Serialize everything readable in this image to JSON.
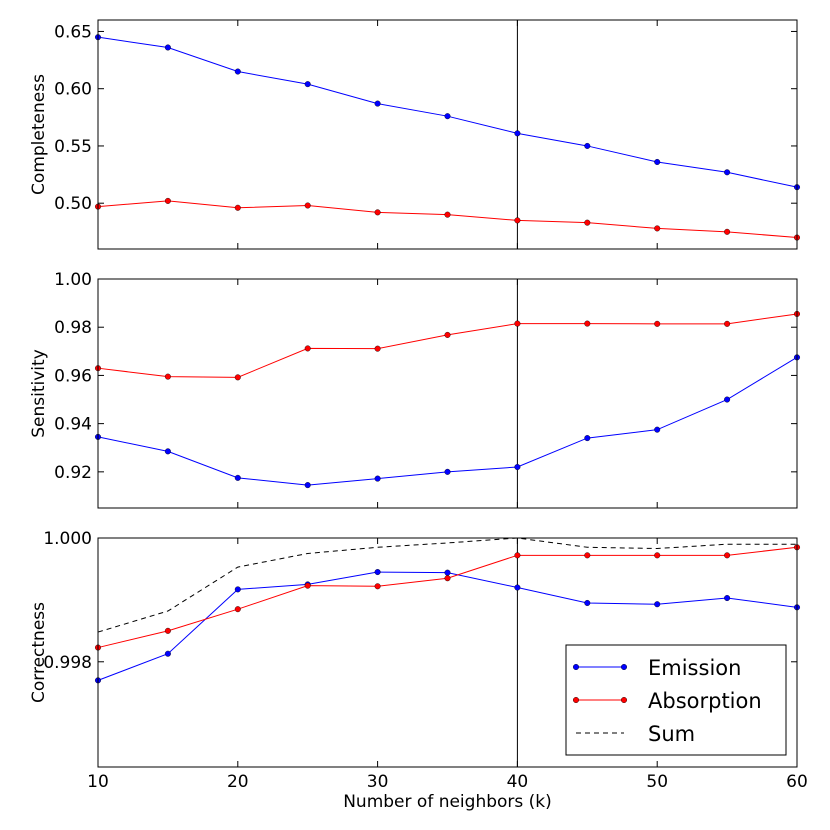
{
  "chart_data": [
    {
      "type": "line",
      "panel": "top",
      "ylabel": "Completeness",
      "xlabel": "",
      "x": [
        10,
        15,
        20,
        25,
        30,
        35,
        40,
        45,
        50,
        55,
        60
      ],
      "xlim": [
        10,
        60
      ],
      "ylim": [
        0.46,
        0.66
      ],
      "yticks": [
        0.5,
        0.55,
        0.6,
        0.65
      ],
      "ytick_labels": [
        "0.50",
        "0.55",
        "0.60",
        "0.65"
      ],
      "xticks_visible": false,
      "vline_x": 40,
      "series": [
        {
          "name": "Emission",
          "color": "#0000ff",
          "marker": true,
          "dashed": false,
          "values": [
            0.645,
            0.636,
            0.615,
            0.604,
            0.587,
            0.576,
            0.561,
            0.55,
            0.536,
            0.527,
            0.514
          ]
        },
        {
          "name": "Absorption",
          "color": "#ff0000",
          "marker": true,
          "dashed": false,
          "values": [
            0.497,
            0.502,
            0.496,
            0.498,
            0.492,
            0.49,
            0.485,
            0.483,
            0.478,
            0.475,
            0.47
          ]
        }
      ]
    },
    {
      "type": "line",
      "panel": "middle",
      "ylabel": "Sensitivity",
      "xlabel": "",
      "x": [
        10,
        15,
        20,
        25,
        30,
        35,
        40,
        45,
        50,
        55,
        60
      ],
      "xlim": [
        10,
        60
      ],
      "ylim": [
        0.905,
        1.0
      ],
      "yticks": [
        0.92,
        0.94,
        0.96,
        0.98,
        1.0
      ],
      "ytick_labels": [
        "0.92",
        "0.94",
        "0.96",
        "0.98",
        "1.00"
      ],
      "xticks_visible": false,
      "vline_x": 40,
      "series": [
        {
          "name": "Emission",
          "color": "#0000ff",
          "marker": true,
          "dashed": false,
          "values": [
            0.9345,
            0.9285,
            0.9175,
            0.9145,
            0.9172,
            0.92,
            0.922,
            0.934,
            0.9375,
            0.95,
            0.9675
          ]
        },
        {
          "name": "Absorption",
          "color": "#ff0000",
          "marker": true,
          "dashed": false,
          "values": [
            0.963,
            0.9595,
            0.9592,
            0.9712,
            0.9711,
            0.9768,
            0.9815,
            0.9815,
            0.9814,
            0.9814,
            0.9855
          ]
        }
      ]
    },
    {
      "type": "line",
      "panel": "bottom",
      "ylabel": "Correctness",
      "xlabel": "Number of neighbors (k)",
      "x": [
        10,
        15,
        20,
        25,
        30,
        35,
        40,
        45,
        50,
        55,
        60
      ],
      "xlim": [
        10,
        60
      ],
      "ylim": [
        0.9963,
        1.0
      ],
      "yticks": [
        0.998,
        1.0
      ],
      "ytick_labels": [
        "0.998",
        "1.000"
      ],
      "xticks": [
        10,
        20,
        30,
        40,
        50,
        60
      ],
      "xtick_labels": [
        "10",
        "20",
        "30",
        "40",
        "50",
        "60"
      ],
      "xticks_visible": true,
      "vline_x": 40,
      "legend": {
        "placement": "lower-right",
        "entries": [
          "Emission",
          "Absorption",
          "Sum"
        ]
      },
      "series": [
        {
          "name": "Emission",
          "color": "#0000ff",
          "marker": true,
          "dashed": false,
          "values": [
            0.9977,
            0.99813,
            0.99917,
            0.99925,
            0.99945,
            0.99944,
            0.9992,
            0.99895,
            0.99893,
            0.99903,
            0.99888
          ]
        },
        {
          "name": "Absorption",
          "color": "#ff0000",
          "marker": true,
          "dashed": false,
          "values": [
            0.99823,
            0.9985,
            0.99885,
            0.99923,
            0.99922,
            0.99935,
            0.99972,
            0.99972,
            0.99972,
            0.99972,
            0.99985
          ]
        },
        {
          "name": "Sum",
          "color": "#000000",
          "marker": false,
          "dashed": true,
          "values": [
            0.99848,
            0.99882,
            0.99953,
            0.99975,
            0.99985,
            0.99992,
            1.0,
            0.99985,
            0.99983,
            0.9999,
            0.9999
          ]
        }
      ]
    }
  ]
}
